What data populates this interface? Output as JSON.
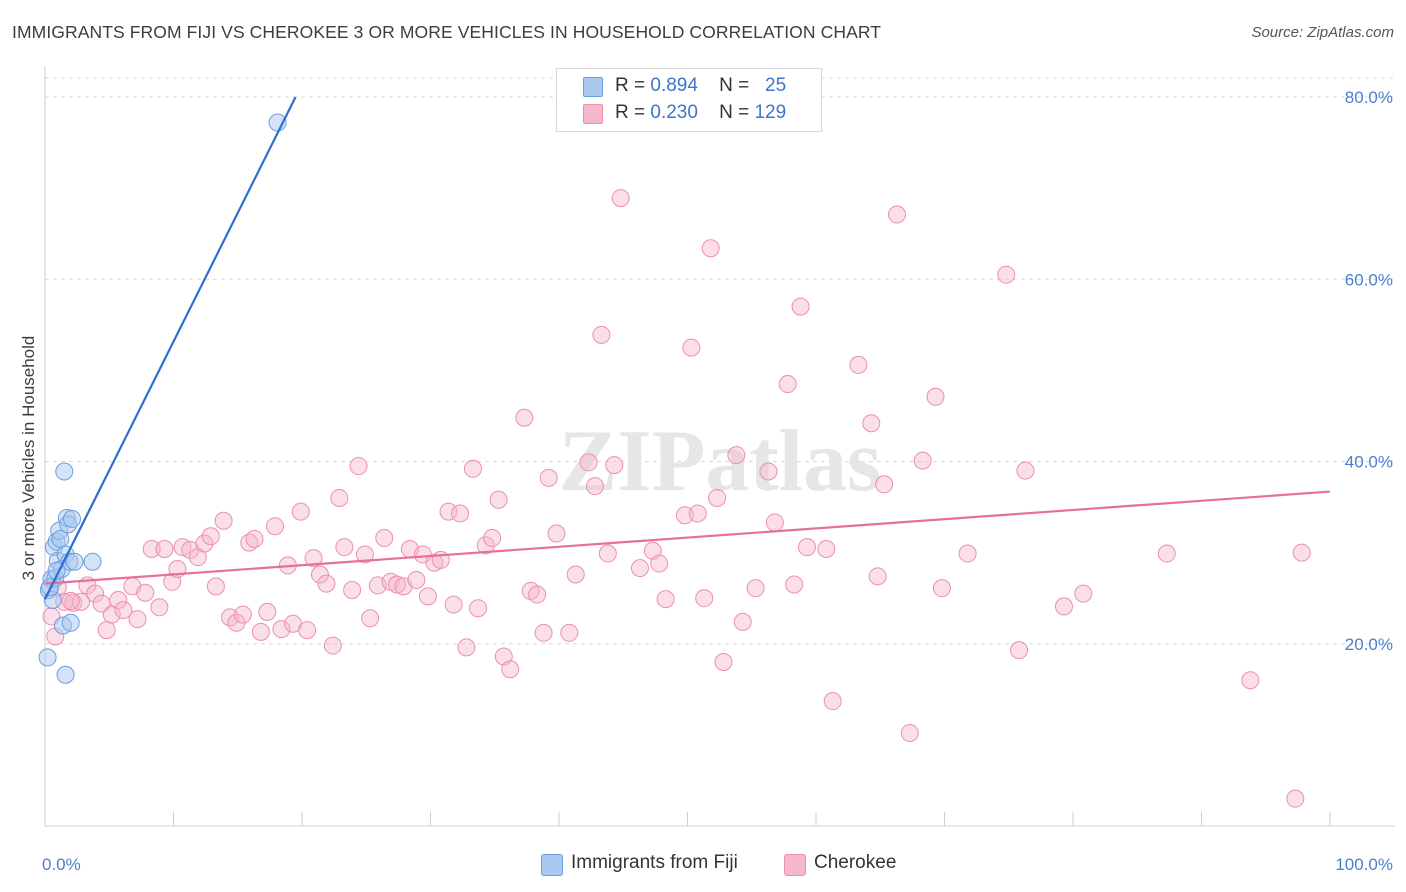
{
  "title": "IMMIGRANTS FROM FIJI VS CHEROKEE 3 OR MORE VEHICLES IN HOUSEHOLD CORRELATION CHART",
  "source": "Source: ZipAtlas.com",
  "watermark": "ZIPatlas",
  "legend": {
    "rows": [
      {
        "r_label": "R =",
        "r_value": "0.894",
        "n_label": "N =",
        "n_value": "25"
      },
      {
        "r_label": "R =",
        "r_value": "0.230",
        "n_label": "N =",
        "n_value": "129"
      }
    ]
  },
  "bottom_legend": {
    "fiji": "Immigrants from Fiji",
    "cherokee": "Cherokee"
  },
  "colors": {
    "fiji_fill": "#a9c8ef",
    "fiji_stroke": "#6b9ee0",
    "fiji_line": "#2a6fd1",
    "cherokee_fill": "#f5b8cc",
    "cherokee_stroke": "#ec8fb0",
    "cherokee_line": "#e5709b",
    "tick_text": "#4a7fd0",
    "grid": "#d9d9d9"
  },
  "chart_data": {
    "type": "scatter",
    "title": "IMMIGRANTS FROM FIJI VS CHEROKEE 3 OR MORE VEHICLES IN HOUSEHOLD CORRELATION CHART",
    "xlabel": "",
    "ylabel": "3 or more Vehicles in Household",
    "xlim": [
      0,
      100
    ],
    "ylim": [
      0,
      83
    ],
    "x_tick_labels": [
      "0.0%",
      "100.0%"
    ],
    "y_ticks": [
      20,
      40,
      60,
      80
    ],
    "y_tick_labels": [
      "20.0%",
      "40.0%",
      "60.0%",
      "80.0%"
    ],
    "grid": true,
    "legend_position": "top-center",
    "series": [
      {
        "name": "Immigrants from Fiji",
        "points": [
          [
            0.2,
            18.5
          ],
          [
            0.3,
            25.9
          ],
          [
            0.5,
            27.1
          ],
          [
            0.6,
            24.8
          ],
          [
            0.7,
            30.6
          ],
          [
            0.8,
            27.2
          ],
          [
            0.9,
            31.2
          ],
          [
            1.0,
            29.1
          ],
          [
            1.1,
            32.4
          ],
          [
            1.2,
            31.5
          ],
          [
            1.3,
            28.2
          ],
          [
            1.4,
            22.0
          ],
          [
            1.5,
            38.9
          ],
          [
            1.6,
            29.8
          ],
          [
            1.6,
            16.6
          ],
          [
            1.7,
            33.8
          ],
          [
            1.8,
            33.1
          ],
          [
            1.9,
            29.0
          ],
          [
            2.0,
            22.3
          ],
          [
            2.1,
            33.7
          ],
          [
            2.3,
            29.0
          ],
          [
            3.7,
            29.0
          ],
          [
            18.1,
            77.2
          ],
          [
            0.4,
            26.2
          ],
          [
            0.9,
            28.0
          ]
        ],
        "trend": {
          "x": [
            0.0,
            19.5
          ],
          "y": [
            24.9,
            80.0
          ]
        }
      },
      {
        "name": "Cherokee",
        "points": [
          [
            0.5,
            23.0
          ],
          [
            0.8,
            20.8
          ],
          [
            1.5,
            24.6
          ],
          [
            2.2,
            24.5
          ],
          [
            2.8,
            24.6
          ],
          [
            3.3,
            26.4
          ],
          [
            3.9,
            25.5
          ],
          [
            4.4,
            24.4
          ],
          [
            4.8,
            21.5
          ],
          [
            5.2,
            23.2
          ],
          [
            5.7,
            24.8
          ],
          [
            6.1,
            23.7
          ],
          [
            6.8,
            26.3
          ],
          [
            7.2,
            22.7
          ],
          [
            7.8,
            25.6
          ],
          [
            8.3,
            30.4
          ],
          [
            8.9,
            24.0
          ],
          [
            9.3,
            30.4
          ],
          [
            9.9,
            26.8
          ],
          [
            10.3,
            28.2
          ],
          [
            10.7,
            30.6
          ],
          [
            11.3,
            30.3
          ],
          [
            11.9,
            29.5
          ],
          [
            12.4,
            31.0
          ],
          [
            12.9,
            31.8
          ],
          [
            13.3,
            26.3
          ],
          [
            13.9,
            33.5
          ],
          [
            14.4,
            22.9
          ],
          [
            14.9,
            22.3
          ],
          [
            15.4,
            23.2
          ],
          [
            15.9,
            31.1
          ],
          [
            16.3,
            31.5
          ],
          [
            16.8,
            21.3
          ],
          [
            17.3,
            23.5
          ],
          [
            17.9,
            32.9
          ],
          [
            18.4,
            21.6
          ],
          [
            18.9,
            28.6
          ],
          [
            19.3,
            22.2
          ],
          [
            19.9,
            34.5
          ],
          [
            20.4,
            21.5
          ],
          [
            20.9,
            29.4
          ],
          [
            21.4,
            27.6
          ],
          [
            21.9,
            26.6
          ],
          [
            22.4,
            19.8
          ],
          [
            22.9,
            36.0
          ],
          [
            23.3,
            30.6
          ],
          [
            23.9,
            25.9
          ],
          [
            24.4,
            39.5
          ],
          [
            24.9,
            29.8
          ],
          [
            25.3,
            22.8
          ],
          [
            25.9,
            26.4
          ],
          [
            26.4,
            31.6
          ],
          [
            26.9,
            26.8
          ],
          [
            27.4,
            26.5
          ],
          [
            27.9,
            26.3
          ],
          [
            28.4,
            30.4
          ],
          [
            28.9,
            27.0
          ],
          [
            29.4,
            29.8
          ],
          [
            29.8,
            25.2
          ],
          [
            30.3,
            28.9
          ],
          [
            30.8,
            29.2
          ],
          [
            31.4,
            34.5
          ],
          [
            31.8,
            24.3
          ],
          [
            32.3,
            34.3
          ],
          [
            32.8,
            19.6
          ],
          [
            33.3,
            39.2
          ],
          [
            33.7,
            23.9
          ],
          [
            34.3,
            30.8
          ],
          [
            34.8,
            31.6
          ],
          [
            35.3,
            35.8
          ],
          [
            35.7,
            18.6
          ],
          [
            36.2,
            17.2
          ],
          [
            37.3,
            44.8
          ],
          [
            37.8,
            25.8
          ],
          [
            38.3,
            25.4
          ],
          [
            38.8,
            21.2
          ],
          [
            39.2,
            38.2
          ],
          [
            39.8,
            32.1
          ],
          [
            40.8,
            21.2
          ],
          [
            41.3,
            27.6
          ],
          [
            42.3,
            39.9
          ],
          [
            42.8,
            37.3
          ],
          [
            43.3,
            53.9
          ],
          [
            43.8,
            29.9
          ],
          [
            44.3,
            39.6
          ],
          [
            44.8,
            68.9
          ],
          [
            46.3,
            28.3
          ],
          [
            47.3,
            30.2
          ],
          [
            47.8,
            28.8
          ],
          [
            48.3,
            24.9
          ],
          [
            49.8,
            34.1
          ],
          [
            50.3,
            52.5
          ],
          [
            50.8,
            34.3
          ],
          [
            51.3,
            25.0
          ],
          [
            51.8,
            63.4
          ],
          [
            52.3,
            36.0
          ],
          [
            52.8,
            18.0
          ],
          [
            53.8,
            40.7
          ],
          [
            54.3,
            22.4
          ],
          [
            55.3,
            26.1
          ],
          [
            56.3,
            38.9
          ],
          [
            56.8,
            33.3
          ],
          [
            57.8,
            48.5
          ],
          [
            58.3,
            26.5
          ],
          [
            58.8,
            57.0
          ],
          [
            59.3,
            30.6
          ],
          [
            60.8,
            30.4
          ],
          [
            61.3,
            13.7
          ],
          [
            63.3,
            50.6
          ],
          [
            64.3,
            44.2
          ],
          [
            64.8,
            27.4
          ],
          [
            65.3,
            37.5
          ],
          [
            66.3,
            67.1
          ],
          [
            67.3,
            10.2
          ],
          [
            68.3,
            40.1
          ],
          [
            69.3,
            47.1
          ],
          [
            69.8,
            26.1
          ],
          [
            71.8,
            29.9
          ],
          [
            74.8,
            60.5
          ],
          [
            75.8,
            19.3
          ],
          [
            76.3,
            39.0
          ],
          [
            79.3,
            24.1
          ],
          [
            80.8,
            25.5
          ],
          [
            87.3,
            29.9
          ],
          [
            93.8,
            16.0
          ],
          [
            97.3,
            3.0
          ],
          [
            97.8,
            30.0
          ],
          [
            1.0,
            26.2
          ],
          [
            2.0,
            24.7
          ]
        ],
        "trend": {
          "x": [
            0.0,
            100.0
          ],
          "y": [
            26.6,
            36.7
          ]
        }
      }
    ]
  }
}
